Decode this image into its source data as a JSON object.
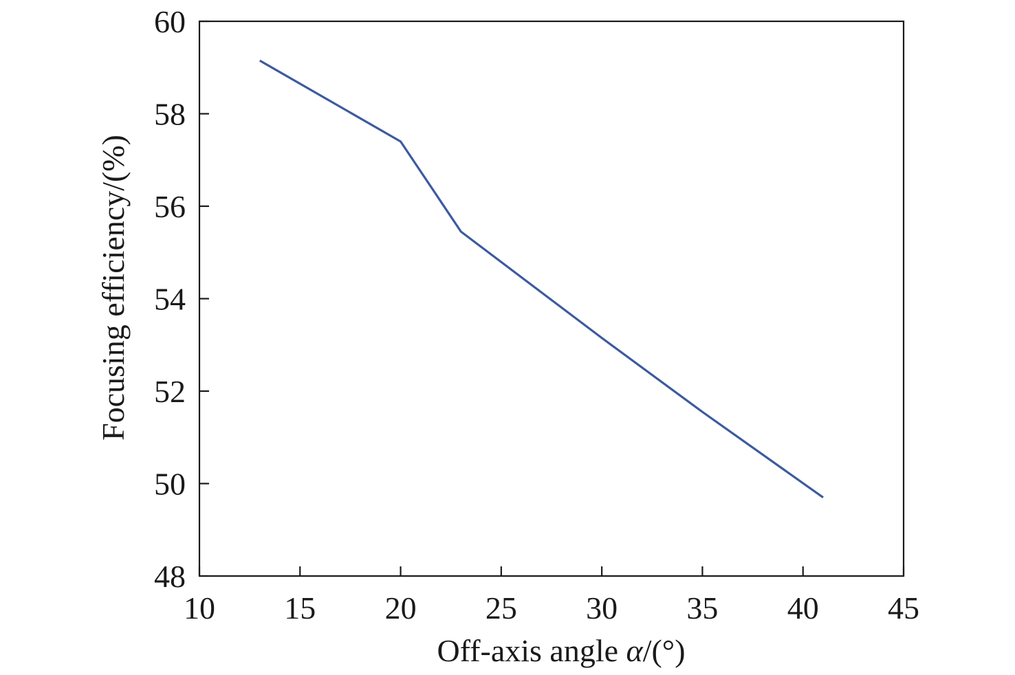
{
  "chart_data": {
    "type": "line",
    "title": "",
    "xlabel": {
      "main": "Off-axis angle ",
      "symbol": "α",
      "unit": "/(°)"
    },
    "ylabel": "Focusing efficiency/(%)",
    "xlim": [
      10,
      45
    ],
    "ylim": [
      48,
      60
    ],
    "xticks": [
      10,
      15,
      20,
      25,
      30,
      35,
      40,
      45
    ],
    "yticks": [
      48,
      50,
      52,
      54,
      56,
      58,
      60
    ],
    "grid": false,
    "legend": "none",
    "line_color": "#3d5a9e",
    "series": [
      {
        "x": [
          13,
          20,
          23,
          30,
          35,
          41
        ],
        "y": [
          59.15,
          57.4,
          55.45,
          53.15,
          51.55,
          49.7
        ]
      }
    ]
  }
}
